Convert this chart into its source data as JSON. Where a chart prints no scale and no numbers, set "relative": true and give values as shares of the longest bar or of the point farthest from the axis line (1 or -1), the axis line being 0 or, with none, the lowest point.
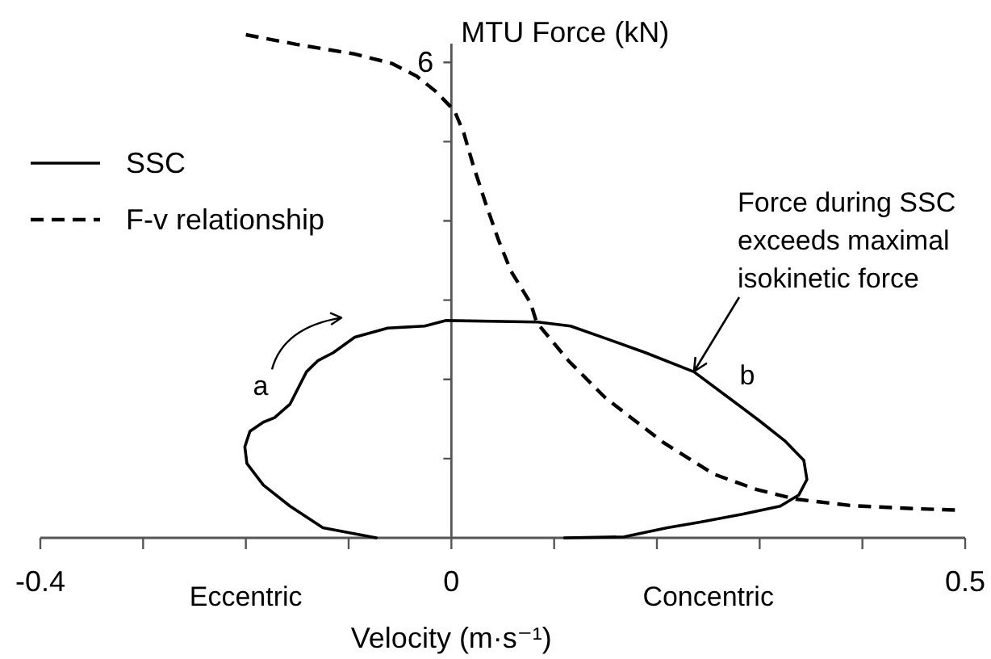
{
  "chart_data": {
    "type": "line",
    "xlabel": "Velocity (m·s⁻¹)",
    "ylabel": "MTU Force (kN)",
    "relative": true,
    "xlim": [
      -0.4,
      0.5
    ],
    "xticks": [
      -0.4,
      {
        "value": -0.3,
        "label": null
      },
      {
        "value": -0.2,
        "label": null
      },
      {
        "value": -0.1,
        "label": null
      },
      0,
      {
        "value": 0.1,
        "label": null
      },
      {
        "value": 0.2,
        "label": null
      },
      {
        "value": 0.3,
        "label": null
      },
      {
        "value": 0.4,
        "label": null
      },
      0.5
    ],
    "legend": "top left",
    "series": [
      {
        "name": "SSC",
        "color": "#000000",
        "line_style": "solid",
        "x": [
          -0.073,
          -0.125,
          -0.157,
          -0.183,
          -0.199,
          -0.201,
          -0.196,
          -0.183,
          -0.172,
          -0.157,
          -0.141,
          -0.13,
          -0.115,
          -0.094,
          -0.062,
          -0.026,
          -0.005,
          0.084,
          0.116,
          0.152,
          0.189,
          0.236,
          0.267,
          0.299,
          0.325,
          0.343,
          0.346,
          0.338,
          0.32,
          0.283,
          0.241,
          0.21,
          0.168,
          0.11
        ],
        "values": [
          0,
          0.02,
          0.063,
          0.105,
          0.148,
          0.181,
          0.212,
          0.23,
          0.239,
          0.266,
          0.33,
          0.352,
          0.368,
          0.399,
          0.417,
          0.421,
          0.432,
          0.429,
          0.421,
          0.395,
          0.368,
          0.33,
          0.283,
          0.234,
          0.192,
          0.154,
          0.116,
          0.085,
          0.063,
          0.047,
          0.031,
          0.02,
          0.002,
          0
        ]
      },
      {
        "name": "F-v relationship",
        "color": "#000000",
        "line_style": "dashed",
        "x": [
          -0.2,
          -0.151,
          -0.095,
          -0.058,
          -0.034,
          -0.015,
          0.003,
          0.012,
          0.021,
          0.033,
          0.046,
          0.058,
          0.077,
          0.083,
          0.114,
          0.15,
          0.206,
          0.255,
          0.297,
          0.335,
          0.39,
          0.451,
          0.494
        ],
        "values": [
          1,
          0.981,
          0.962,
          0.943,
          0.918,
          0.887,
          0.849,
          0.805,
          0.742,
          0.667,
          0.591,
          0.53,
          0.467,
          0.428,
          0.352,
          0.278,
          0.19,
          0.127,
          0.096,
          0.077,
          0.064,
          0.058,
          0.055
        ]
      }
    ],
    "annotations": [
      "6",
      "a",
      "b",
      "Force during SSC exceeds maximal isokinetic force",
      "Eccentric",
      "Concentric"
    ]
  }
}
